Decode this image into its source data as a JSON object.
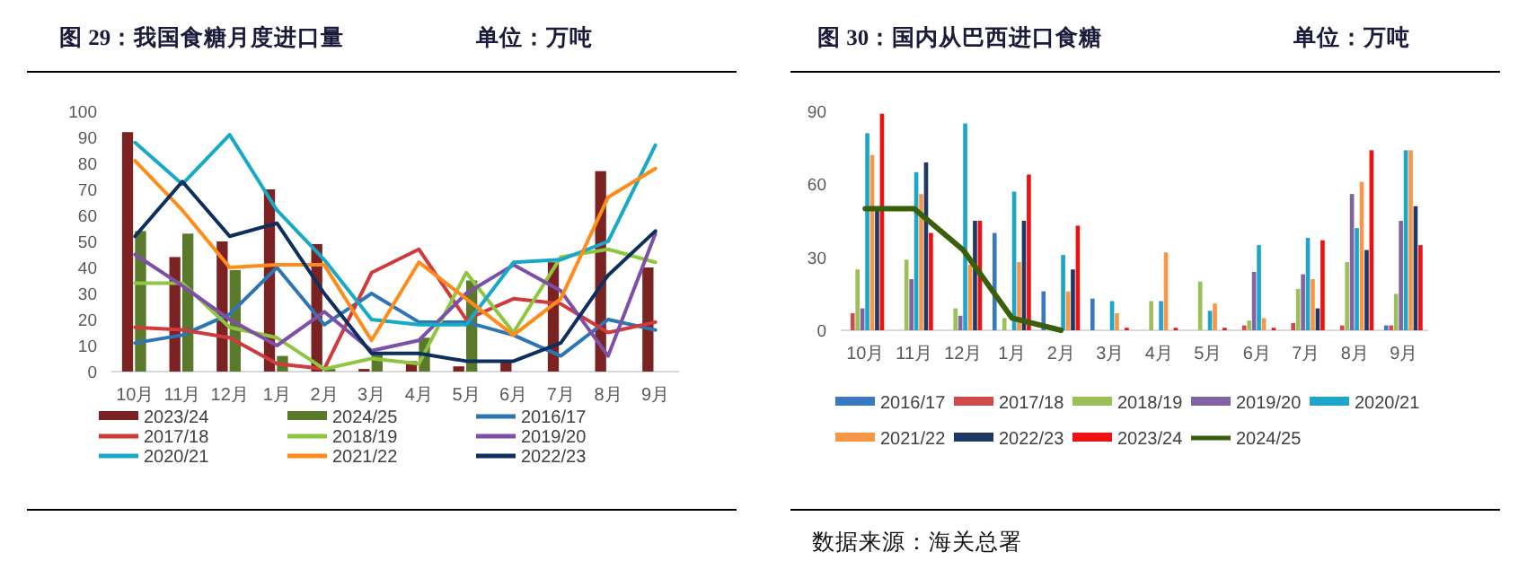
{
  "chart_data": [
    {
      "type": "bar",
      "title": "图 29：我国食糖月度进口量",
      "subtitle": "单位：万吨",
      "categories": [
        "10月",
        "11月",
        "12月",
        "1月",
        "2月",
        "3月",
        "4月",
        "5月",
        "6月",
        "7月",
        "8月",
        "9月"
      ],
      "ylim": [
        0,
        100
      ],
      "yticks": [
        0,
        10,
        20,
        30,
        40,
        50,
        60,
        70,
        80,
        90,
        100
      ],
      "grid": false,
      "legend": "bottom",
      "series": [
        {
          "name": "2023/24",
          "color": "#7b2323",
          "values": [
            92,
            44,
            50,
            70,
            49,
            1,
            4,
            2,
            4,
            42,
            77,
            40
          ]
        },
        {
          "name": "2024/25",
          "color": "#5a7a2b",
          "values": [
            54,
            53,
            39,
            6,
            1,
            7,
            13,
            35,
            null,
            null,
            null,
            null
          ]
        },
        {
          "name": "2016/17",
          "type": "line",
          "color": "#2e75b6",
          "values": [
            11,
            14,
            22,
            40,
            18,
            30,
            19,
            19,
            14,
            6,
            20,
            16
          ]
        },
        {
          "name": "2017/18",
          "type": "line",
          "color": "#d03a3a",
          "values": [
            17,
            16,
            13,
            3,
            1,
            38,
            47,
            20,
            28,
            26,
            15,
            19
          ]
        },
        {
          "name": "2018/19",
          "type": "line",
          "color": "#8fc640",
          "values": [
            34,
            34,
            17,
            13,
            1,
            5,
            3,
            38,
            15,
            44,
            47,
            42
          ]
        },
        {
          "name": "2019/20",
          "type": "line",
          "color": "#7e4fa6",
          "values": [
            45,
            33,
            20,
            10,
            23,
            8,
            12,
            30,
            41,
            31,
            6,
            53
          ]
        },
        {
          "name": "2020/21",
          "type": "line",
          "color": "#18a9c9",
          "values": [
            88,
            72,
            91,
            62,
            43,
            20,
            18,
            18,
            42,
            43,
            50,
            87
          ]
        },
        {
          "name": "2021/22",
          "type": "line",
          "color": "#ff8c1a",
          "values": [
            81,
            62,
            40,
            41,
            41,
            12,
            42,
            28,
            14,
            28,
            67,
            78
          ]
        },
        {
          "name": "2022/23",
          "type": "line",
          "color": "#0d2f5e",
          "values": [
            52,
            73,
            52,
            57,
            30,
            7,
            7,
            4,
            4,
            11,
            37,
            54
          ]
        }
      ]
    },
    {
      "type": "bar",
      "title": "图 30：国内从巴西进口食糖",
      "subtitle": "单位：万吨",
      "categories": [
        "10月",
        "11月",
        "12月",
        "1月",
        "2月",
        "3月",
        "4月",
        "5月",
        "6月",
        "7月",
        "8月",
        "9月"
      ],
      "ylim": [
        0,
        90
      ],
      "yticks": [
        0,
        30,
        60,
        90
      ],
      "grid": false,
      "legend": "bottom",
      "annotations": [
        "数据来源：海关总署"
      ],
      "series": [
        {
          "name": "2016/17",
          "color": "#3a78c2",
          "values": [
            0,
            0,
            0,
            40,
            16,
            13,
            0,
            0,
            0,
            0,
            0,
            2
          ]
        },
        {
          "name": "2017/18",
          "color": "#cf4a4a",
          "values": [
            7,
            0,
            0,
            0,
            0,
            0,
            0,
            0,
            2,
            3,
            2,
            2
          ]
        },
        {
          "name": "2018/19",
          "color": "#9bc05a",
          "values": [
            25,
            29,
            9,
            5,
            0,
            0,
            12,
            20,
            4,
            17,
            28,
            15
          ]
        },
        {
          "name": "2019/20",
          "color": "#8064a2",
          "values": [
            9,
            21,
            6,
            0,
            0,
            0,
            0,
            0,
            24,
            23,
            56,
            45
          ]
        },
        {
          "name": "2020/21",
          "color": "#1fa5c9",
          "values": [
            81,
            65,
            85,
            57,
            31,
            12,
            12,
            8,
            35,
            38,
            42,
            74
          ]
        },
        {
          "name": "2021/22",
          "color": "#f79646",
          "values": [
            72,
            56,
            27,
            28,
            16,
            7,
            32,
            11,
            5,
            21,
            61,
            74
          ]
        },
        {
          "name": "2022/23",
          "color": "#1f3864",
          "values": [
            50,
            69,
            45,
            45,
            25,
            0,
            0,
            0,
            0,
            9,
            33,
            51
          ]
        },
        {
          "name": "2023/24",
          "color": "#ee1111",
          "values": [
            89,
            40,
            45,
            64,
            43,
            1,
            1,
            1,
            1,
            37,
            74,
            35
          ]
        },
        {
          "name": "2024/25",
          "type": "line",
          "color": "#3a5f0b",
          "values": [
            50,
            50,
            33,
            5,
            0,
            null,
            null,
            null,
            null,
            null,
            null,
            null
          ]
        }
      ]
    }
  ]
}
